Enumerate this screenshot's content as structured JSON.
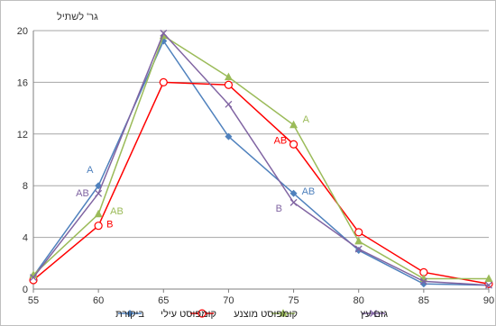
{
  "chart_data": {
    "type": "line",
    "ylabel": "גר' לשתיל",
    "x": [
      55,
      60,
      65,
      70,
      75,
      80,
      85,
      90
    ],
    "xlim": [
      55,
      90
    ],
    "ylim": [
      0,
      20
    ],
    "yticks": [
      0,
      4,
      8,
      12,
      16,
      20
    ],
    "grid": "horizontal",
    "legend_position": "bottom",
    "series": [
      {
        "name": "ביקורת",
        "color": "#4f81bd",
        "marker": "diamond",
        "values": [
          1.0,
          8.0,
          19.2,
          11.8,
          7.4,
          3.0,
          0.4,
          0.3
        ]
      },
      {
        "name": "קומפוסט עילי",
        "color": "#ff0000",
        "marker": "circle",
        "values": [
          0.7,
          4.9,
          16.0,
          15.8,
          11.2,
          4.4,
          1.3,
          0.4
        ]
      },
      {
        "name": "קומפוסט מוצנע",
        "color": "#9bbb59",
        "marker": "triangle",
        "values": [
          1.1,
          5.8,
          19.6,
          16.4,
          12.7,
          3.7,
          0.8,
          0.8
        ]
      },
      {
        "name": "גזם עץ",
        "color": "#8064a2",
        "marker": "x",
        "values": [
          0.9,
          7.4,
          19.8,
          14.3,
          6.7,
          3.1,
          0.6,
          0.3
        ]
      }
    ],
    "annotations": [
      {
        "text": "A",
        "x": 60,
        "color": "#4f81bd",
        "dx": -13,
        "dy": -14
      },
      {
        "text": "AB",
        "x": 60,
        "color": "#8064a2",
        "dx": -25,
        "dy": 3
      },
      {
        "text": "AB",
        "x": 60,
        "color": "#9bbb59",
        "dx": 13,
        "dy": 0
      },
      {
        "text": "B",
        "x": 60,
        "color": "#ff0000",
        "dx": 9,
        "dy": 2
      },
      {
        "text": "A",
        "x": 75,
        "color": "#9bbb59",
        "dx": 10,
        "dy": -3
      },
      {
        "text": "AB",
        "x": 75,
        "color": "#ff0000",
        "dx": -22,
        "dy": -1
      },
      {
        "text": "AB",
        "x": 75,
        "color": "#4f81bd",
        "dx": 9,
        "dy": 1
      },
      {
        "text": "B",
        "x": 75,
        "color": "#8064a2",
        "dx": -20,
        "dy": 10
      }
    ]
  }
}
